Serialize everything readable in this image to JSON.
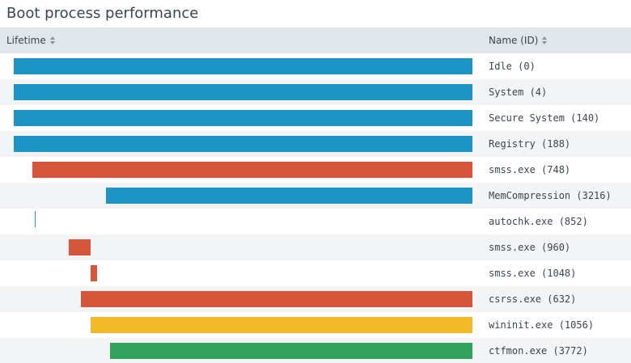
{
  "title": "Boot process performance",
  "columns": {
    "lifetime": "Lifetime",
    "name": "Name (ID)"
  },
  "colors": {
    "blue": "#1e93c6",
    "red": "#d6563c",
    "yellow": "#f2b827",
    "green": "#31a35f"
  },
  "timeline_max": 1.0,
  "rows": [
    {
      "name": "Idle (0)",
      "start": 0.0,
      "end": 1.0,
      "color": "blue"
    },
    {
      "name": "System (4)",
      "start": 0.0,
      "end": 1.0,
      "color": "blue"
    },
    {
      "name": "Secure System (140)",
      "start": 0.0,
      "end": 1.0,
      "color": "blue"
    },
    {
      "name": "Registry (188)",
      "start": 0.0,
      "end": 1.0,
      "color": "blue"
    },
    {
      "name": "smss.exe (748)",
      "start": 0.041,
      "end": 1.0,
      "color": "red"
    },
    {
      "name": "MemCompression (3216)",
      "start": 0.201,
      "end": 1.0,
      "color": "blue"
    },
    {
      "name": "autochk.exe (852)",
      "start": 0.046,
      "end": 0.048,
      "color": "blue"
    },
    {
      "name": "smss.exe (960)",
      "start": 0.12,
      "end": 0.168,
      "color": "red"
    },
    {
      "name": "smss.exe (1048)",
      "start": 0.168,
      "end": 0.182,
      "color": "red"
    },
    {
      "name": "csrss.exe (632)",
      "start": 0.146,
      "end": 1.0,
      "color": "red"
    },
    {
      "name": "wininit.exe (1056)",
      "start": 0.168,
      "end": 1.0,
      "color": "yellow"
    },
    {
      "name": "ctfmon.exe (3772)",
      "start": 0.21,
      "end": 1.0,
      "color": "green"
    }
  ]
}
